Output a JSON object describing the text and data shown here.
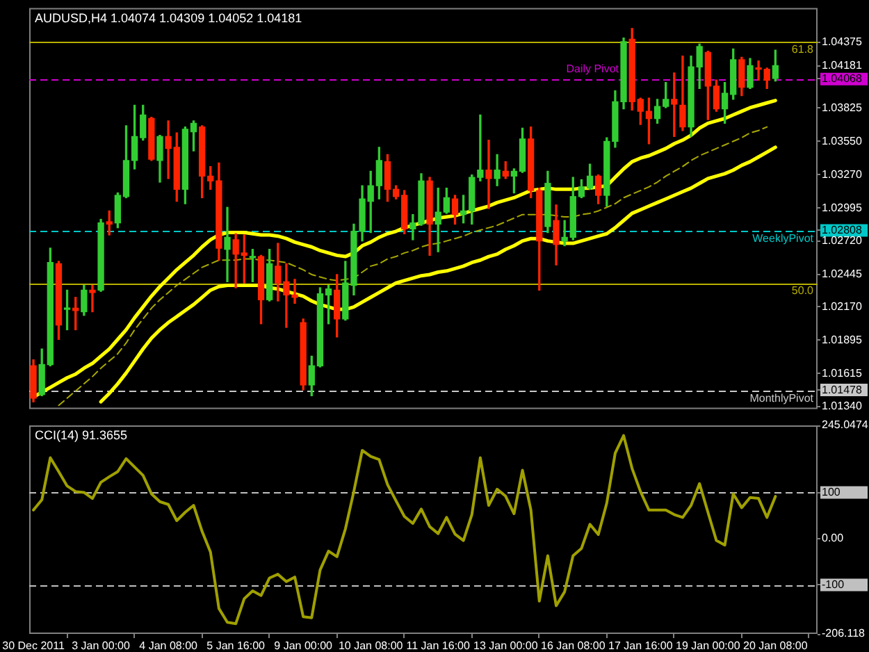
{
  "chart_data": [
    {
      "type": "candlestick",
      "title": "AUDUSD,H4 1.04074 1.04309 1.04052 1.04181",
      "categories": [
        null,
        null,
        null,
        null,
        null,
        null,
        null,
        null,
        null,
        null,
        null,
        null,
        null,
        null,
        null,
        null,
        null,
        null,
        null,
        null,
        null,
        null,
        null,
        null,
        null,
        null,
        null,
        null,
        null,
        null,
        null,
        null,
        null,
        null,
        null,
        null,
        null,
        null,
        null,
        null,
        null,
        null,
        null,
        null,
        null,
        null,
        null,
        null,
        null,
        null,
        null,
        null,
        null,
        null,
        null,
        null,
        null,
        null,
        null,
        null,
        null,
        null,
        null,
        null,
        null,
        null,
        null,
        null,
        null,
        null,
        null,
        null,
        null,
        null,
        null,
        null,
        null,
        null,
        null,
        null,
        null,
        null,
        null,
        null,
        null,
        null,
        null,
        null,
        null
      ],
      "ohlc": [
        [
          1.0168,
          1.0173,
          1.0138,
          1.0141
        ],
        [
          1.0144,
          1.0182,
          1.0143,
          1.0169
        ],
        [
          1.0169,
          1.0266,
          1.0168,
          1.0254
        ],
        [
          1.0253,
          1.0255,
          1.019,
          1.0202
        ],
        [
          1.0215,
          1.0231,
          1.0198,
          1.0216
        ],
        [
          1.0216,
          1.0225,
          1.0198,
          1.0214
        ],
        [
          1.0213,
          1.0235,
          1.021,
          1.0231
        ],
        [
          1.0231,
          1.0235,
          1.0213,
          1.0229
        ],
        [
          1.0231,
          1.029,
          1.023,
          1.0287
        ],
        [
          1.0288,
          1.0297,
          1.0277,
          1.0286
        ],
        [
          1.0287,
          1.0312,
          1.0283,
          1.031
        ],
        [
          1.0309,
          1.0368,
          1.0308,
          1.0339
        ],
        [
          1.0339,
          1.0385,
          1.0332,
          1.0359
        ],
        [
          1.0358,
          1.0385,
          1.0356,
          1.0377
        ],
        [
          1.0374,
          1.0375,
          1.0339,
          1.034
        ],
        [
          1.0339,
          1.036,
          1.0321,
          1.0359
        ],
        [
          1.0359,
          1.0372,
          1.0324,
          1.0349
        ],
        [
          1.035,
          1.0362,
          1.0305,
          1.0315
        ],
        [
          1.0315,
          1.0367,
          1.0303,
          1.0365
        ],
        [
          1.0363,
          1.0372,
          1.0347,
          1.037
        ],
        [
          1.0367,
          1.0368,
          1.0308,
          1.0326
        ],
        [
          1.0326,
          1.0334,
          1.0315,
          1.0322
        ],
        [
          1.0322,
          1.0337,
          1.0256,
          1.0266
        ],
        [
          1.0265,
          1.03,
          1.0238,
          1.0275
        ],
        [
          1.0273,
          1.0278,
          1.0233,
          1.0261
        ],
        [
          1.0262,
          1.0277,
          1.0237,
          1.026
        ],
        [
          1.0258,
          1.0265,
          1.0238,
          1.0259
        ],
        [
          1.0259,
          1.026,
          1.0203,
          1.0223
        ],
        [
          1.0223,
          1.0265,
          1.0222,
          1.0253
        ],
        [
          1.0251,
          1.027,
          1.0222,
          1.0237
        ],
        [
          1.0238,
          1.0253,
          1.02,
          1.0227
        ],
        [
          1.0227,
          1.024,
          1.022,
          1.0225
        ],
        [
          1.0204,
          1.0207,
          1.0148,
          1.0152
        ],
        [
          1.0152,
          1.0176,
          1.0143,
          1.0168
        ],
        [
          1.0168,
          1.0233,
          1.0167,
          1.0228
        ],
        [
          1.0227,
          1.0235,
          1.0203,
          1.0232
        ],
        [
          1.0231,
          1.0244,
          1.0192,
          1.0207
        ],
        [
          1.0207,
          1.0255,
          1.0206,
          1.0237
        ],
        [
          1.0235,
          1.0286,
          1.0227,
          1.028
        ],
        [
          1.028,
          1.0318,
          1.0272,
          1.0307
        ],
        [
          1.0305,
          1.033,
          1.0279,
          1.0318
        ],
        [
          1.0318,
          1.035,
          1.0307,
          1.0339
        ],
        [
          1.0338,
          1.0344,
          1.0305,
          1.0315
        ],
        [
          1.0315,
          1.0318,
          1.0307,
          1.0309
        ],
        [
          1.031,
          1.0314,
          1.0278,
          1.0282
        ],
        [
          1.0282,
          1.0294,
          1.0273,
          1.0287
        ],
        [
          1.0286,
          1.0328,
          1.0285,
          1.0322
        ],
        [
          1.0322,
          1.0325,
          1.026,
          1.0286
        ],
        [
          1.0286,
          1.0316,
          1.0263,
          1.0296
        ],
        [
          1.0296,
          1.0316,
          1.0295,
          1.0308
        ],
        [
          1.0307,
          1.031,
          1.0286,
          1.0294
        ],
        [
          1.0294,
          1.031,
          1.0287,
          1.0297
        ],
        [
          1.0297,
          1.0327,
          1.0286,
          1.0325
        ],
        [
          1.0325,
          1.0377,
          1.0322,
          1.0331
        ],
        [
          1.0331,
          1.0356,
          1.0299,
          1.0324
        ],
        [
          1.0324,
          1.0344,
          1.0318,
          1.0331
        ],
        [
          1.033,
          1.0338,
          1.0324,
          1.0326
        ],
        [
          1.0326,
          1.0332,
          1.0312,
          1.033
        ],
        [
          1.033,
          1.0366,
          1.0329,
          1.0357
        ],
        [
          1.0357,
          1.0367,
          1.0308,
          1.0314
        ],
        [
          1.0314,
          1.0316,
          1.0231,
          1.0272
        ],
        [
          1.0284,
          1.033,
          1.0279,
          1.032
        ],
        [
          1.0289,
          1.0302,
          1.0252,
          1.0269
        ],
        [
          1.0272,
          1.0289,
          1.0268,
          1.0275
        ],
        [
          1.0275,
          1.0325,
          1.0273,
          1.0309
        ],
        [
          1.0309,
          1.0323,
          1.0308,
          1.0317
        ],
        [
          1.0316,
          1.0336,
          1.0315,
          1.0326
        ],
        [
          1.0326,
          1.0327,
          1.0303,
          1.031
        ],
        [
          1.031,
          1.0358,
          1.0301,
          1.0355
        ],
        [
          1.0355,
          1.0397,
          1.035,
          1.0388
        ],
        [
          1.0388,
          1.0441,
          1.0382,
          1.0438
        ],
        [
          1.044,
          1.0449,
          1.0381,
          1.0388
        ],
        [
          1.039,
          1.0391,
          1.0369,
          1.038
        ],
        [
          1.038,
          1.0391,
          1.0353,
          1.0374
        ],
        [
          1.0374,
          1.039,
          1.037,
          1.0384
        ],
        [
          1.0384,
          1.0404,
          1.0383,
          1.039
        ],
        [
          1.039,
          1.0412,
          1.0359,
          1.0386
        ],
        [
          1.0385,
          1.0426,
          1.0364,
          1.0367
        ],
        [
          1.0367,
          1.0426,
          1.0359,
          1.0417
        ],
        [
          1.0417,
          1.0436,
          1.0399,
          1.0434
        ],
        [
          1.0429,
          1.043,
          1.0373,
          1.0401
        ],
        [
          1.0401,
          1.0406,
          1.038,
          1.0382
        ],
        [
          1.0382,
          1.0404,
          1.037,
          1.0395
        ],
        [
          1.0394,
          1.0432,
          1.039,
          1.0423
        ],
        [
          1.0423,
          1.0425,
          1.0393,
          1.04
        ],
        [
          1.04,
          1.0424,
          1.0399,
          1.0418
        ],
        [
          1.0416,
          1.0422,
          1.0406,
          1.0415
        ],
        [
          1.0415,
          1.0416,
          1.0399,
          1.0406
        ],
        [
          1.04074,
          1.04309,
          1.04052,
          1.04181
        ]
      ],
      "colors": [
        "#ff2400",
        "#32cd32",
        "#32cd32",
        "#ff2400",
        "#32cd32",
        "#ff2400",
        "#32cd32",
        "#ff2400",
        "#32cd32",
        "#ff2400",
        "#32cd32",
        "#32cd32",
        "#32cd32",
        "#32cd32",
        "#ff2400",
        "#32cd32",
        "#ff2400",
        "#ff2400",
        "#32cd32",
        "#32cd32",
        "#ff2400",
        "#ff2400",
        "#ff2400",
        "#32cd32",
        "#ff2400",
        "#ff2400",
        "#32cd32",
        "#ff2400",
        "#32cd32",
        "#ff2400",
        "#ff2400",
        "#ff2400",
        "#ff2400",
        "#32cd32",
        "#32cd32",
        "#32cd32",
        "#ff2400",
        "#32cd32",
        "#32cd32",
        "#32cd32",
        "#32cd32",
        "#32cd32",
        "#ff2400",
        "#ff2400",
        "#ff2400",
        "#32cd32",
        "#32cd32",
        "#ff2400",
        "#32cd32",
        "#32cd32",
        "#ff2400",
        "#32cd32",
        "#32cd32",
        "#32cd32",
        "#ff2400",
        "#32cd32",
        "#ff2400",
        "#32cd32",
        "#32cd32",
        "#ff2400",
        "#ff2400",
        "#32cd32",
        "#ff2400",
        "#32cd32",
        "#32cd32",
        "#32cd32",
        "#32cd32",
        "#ff2400",
        "#32cd32",
        "#32cd32",
        "#32cd32",
        "#ff2400",
        "#ff2400",
        "#ff2400",
        "#32cd32",
        "#32cd32",
        "#ff2400",
        "#ff2400",
        "#32cd32",
        "#32cd32",
        "#ff2400",
        "#ff2400",
        "#32cd32",
        "#32cd32",
        "#ff2400",
        "#32cd32",
        "#ff2400",
        "#ff2400",
        "#32cd32"
      ],
      "series": [
        {
          "type": "line",
          "color": "#ffff00",
          "values": [
            1.0142,
            1.0146,
            1.015,
            1.0154,
            1.0158,
            1.0161,
            1.0166,
            1.017,
            1.0176,
            1.0182,
            1.019,
            1.0198,
            1.0208,
            1.0217,
            1.0226,
            1.0234,
            1.0241,
            1.0248,
            1.0254,
            1.026,
            1.0267,
            1.0273,
            1.0277,
            1.0279,
            1.0279,
            1.0279,
            1.0278,
            1.0277,
            1.0277,
            1.0276,
            1.0274,
            1.0271,
            1.0269,
            1.0267,
            1.0264,
            1.0262,
            1.026,
            1.0259,
            1.0262,
            1.0268,
            1.0271,
            1.0275,
            1.0278,
            1.028,
            1.0283,
            1.0285,
            1.0287,
            1.0289,
            1.0291,
            1.0292,
            1.0293,
            1.0295,
            1.0297,
            1.0299,
            1.0301,
            1.0304,
            1.0306,
            1.0308,
            1.0311,
            1.0314,
            1.0315,
            1.0316,
            1.0315,
            1.0315,
            1.0315,
            1.0316,
            1.0316,
            1.0317,
            1.0318,
            1.0325,
            1.0332,
            1.0338,
            1.0341,
            1.0343,
            1.0346,
            1.0349,
            1.0353,
            1.0356,
            1.036,
            1.0366,
            1.037,
            1.0372,
            1.0374,
            1.0377,
            1.038,
            1.0383,
            1.0385,
            1.0387,
            1.0389
          ]
        },
        {
          "type": "line",
          "color": "#a8a800",
          "line_style": "dashed",
          "values": [
            null,
            null,
            null,
            1.0135,
            1.0141,
            1.0147,
            1.0153,
            1.0159,
            1.0166,
            1.0172,
            1.0178,
            1.0187,
            1.0198,
            1.0207,
            1.0216,
            1.0223,
            1.0229,
            1.0235,
            1.024,
            1.0245,
            1.025,
            1.0253,
            1.0256,
            1.0256,
            1.0256,
            1.0257,
            1.0257,
            1.0256,
            1.0256,
            1.0255,
            1.0254,
            1.0251,
            1.0248,
            1.0244,
            1.0242,
            1.024,
            1.0239,
            1.024,
            1.0241,
            1.0246,
            1.0251,
            1.0253,
            1.0257,
            1.0259,
            1.0262,
            1.0264,
            1.0267,
            1.0269,
            1.027,
            1.0272,
            1.0274,
            1.0276,
            1.0279,
            1.0281,
            1.0283,
            1.0285,
            1.0288,
            1.0291,
            1.0294,
            1.0294,
            1.0294,
            1.0294,
            1.0293,
            1.0292,
            1.0292,
            1.0294,
            1.0295,
            1.0297,
            1.03,
            1.0303,
            1.0308,
            1.0311,
            1.0314,
            1.0317,
            1.0321,
            1.0326,
            1.033,
            1.0334,
            1.0339,
            1.0343,
            1.0346,
            1.0349,
            1.0352,
            1.0355,
            1.0358,
            1.0362,
            1.0364,
            1.0367,
            null
          ]
        },
        {
          "type": "line",
          "color": "#ffff00",
          "values": [
            null,
            null,
            null,
            null,
            null,
            null,
            null,
            null,
            1.0138,
            1.0145,
            1.0153,
            1.0162,
            1.0172,
            1.0182,
            1.0191,
            1.0198,
            1.0204,
            1.0209,
            1.0214,
            1.0219,
            1.0225,
            1.0231,
            1.0234,
            1.0235,
            1.0235,
            1.0235,
            1.0235,
            1.0235,
            1.0233,
            1.0232,
            1.023,
            1.0228,
            1.0226,
            1.0222,
            1.0219,
            1.0217,
            1.0215,
            1.0215,
            1.0217,
            1.0221,
            1.0225,
            1.0229,
            1.0233,
            1.0237,
            1.0239,
            1.0241,
            1.0243,
            1.0244,
            1.0246,
            1.0247,
            1.0249,
            1.0251,
            1.0254,
            1.0256,
            1.0259,
            1.0261,
            1.0265,
            1.0268,
            1.0272,
            1.0274,
            1.0274,
            1.0272,
            1.0271,
            1.027,
            1.027,
            1.0272,
            1.0274,
            1.0276,
            1.0278,
            1.0283,
            1.0289,
            1.0295,
            1.0298,
            1.0301,
            1.0304,
            1.0307,
            1.031,
            1.0313,
            1.0316,
            1.032,
            1.0324,
            1.0326,
            1.0328,
            1.0331,
            1.0335,
            1.0338,
            1.0342,
            1.0346,
            1.035
          ]
        }
      ],
      "ylim": [
        1.0132,
        1.0466
      ],
      "yticks": [
        1.04375,
        1.04181,
        1.04068,
        1.03825,
        {
          "value": 1.0355,
          "label": "1.03550"
        },
        {
          "value": 1.0327,
          "label": "1.03270"
        },
        1.02995,
        1.02808,
        {
          "value": 1.0272,
          "label": "1.02720"
        },
        1.02445,
        {
          "value": 1.0217,
          "label": "1.02170"
        },
        1.01895,
        1.01615,
        1.01478,
        {
          "value": 1.0134,
          "label": "1.01340"
        }
      ],
      "ref_lines": [
        {
          "axis": "y",
          "value": 1.0438,
          "color": "#b8b000",
          "line_style": "solid"
        },
        {
          "axis": "y",
          "value": 1.04068,
          "label": "Daily Pivot",
          "color": "#d000d0",
          "line_style": "dashed"
        },
        {
          "axis": "y",
          "value": 1.02808,
          "label": "WeeklyPivot",
          "color": "#00c8c8",
          "line_style": "dashed"
        },
        {
          "axis": "y",
          "value": 1.0237,
          "color": "#b8b000",
          "line_style": "solid"
        },
        {
          "axis": "y",
          "value": 1.01478,
          "label": "MonthlyPivot",
          "color": "#c8c8c8",
          "line_style": "dashed"
        }
      ],
      "annotations": [
        {
          "text": "61.8",
          "y": 1.0438
        },
        {
          "text": "50.0",
          "y": 1.0237
        }
      ],
      "tick_labels": "y"
    },
    {
      "type": "line",
      "title": "CCI(14) 91.3655",
      "categories": [
        "30 Dec 2011",
        null,
        null,
        null,
        null,
        null,
        null,
        null,
        "3 Jan 00:00",
        null,
        null,
        null,
        null,
        null,
        null,
        null,
        "4 Jan 08:00",
        null,
        null,
        null,
        null,
        null,
        null,
        null,
        "5 Jan 16:00",
        null,
        null,
        null,
        null,
        null,
        null,
        null,
        "9 Jan 00:00",
        null,
        null,
        null,
        null,
        null,
        null,
        null,
        "10 Jan 08:00",
        null,
        null,
        null,
        null,
        null,
        null,
        null,
        "11 Jan 16:00",
        null,
        null,
        null,
        null,
        null,
        null,
        null,
        "13 Jan 00:00",
        null,
        null,
        null,
        null,
        null,
        null,
        null,
        "16 Jan 08:00",
        null,
        null,
        null,
        null,
        null,
        null,
        null,
        "17 Jan 16:00",
        null,
        null,
        null,
        null,
        null,
        null,
        null,
        "19 Jan 00:00",
        null,
        null,
        null,
        null,
        null,
        null,
        null,
        "20 Jan 08:00"
      ],
      "values": [
        62,
        84,
        175,
        145,
        114,
        102,
        100,
        87,
        122,
        134,
        145,
        173,
        155,
        137,
        97,
        80,
        74,
        39,
        57,
        72,
        16,
        -29,
        -151,
        -181,
        -184,
        -130,
        -113,
        -123,
        -85,
        -77,
        -93,
        -83,
        -169,
        -171,
        -68,
        -27,
        -39,
        21,
        102,
        191,
        178,
        171,
        117,
        82,
        48,
        33,
        64,
        26,
        11,
        46,
        10,
        -4,
        52,
        175,
        72,
        107,
        92,
        54,
        148,
        62,
        -135,
        -37,
        -145,
        -115,
        -37,
        -21,
        31,
        9,
        77,
        185,
        223,
        152,
        102,
        62,
        62,
        62,
        52,
        46,
        72,
        119,
        57,
        -4,
        -14,
        97,
        67,
        89,
        87,
        46,
        91.3655
      ],
      "color": "#a0a000",
      "ylim": [
        -206.118,
        245.0474
      ],
      "yticks": [
        245.0474,
        100,
        {
          "value": 0,
          "label": "0.00"
        },
        -100,
        -206.118
      ],
      "ref_lines": [
        {
          "axis": "y",
          "value": 100,
          "color": "#c0c0c0",
          "line_style": "dashed"
        },
        {
          "axis": "y",
          "value": -100,
          "color": "#c0c0c0",
          "line_style": "dashed"
        }
      ]
    }
  ]
}
